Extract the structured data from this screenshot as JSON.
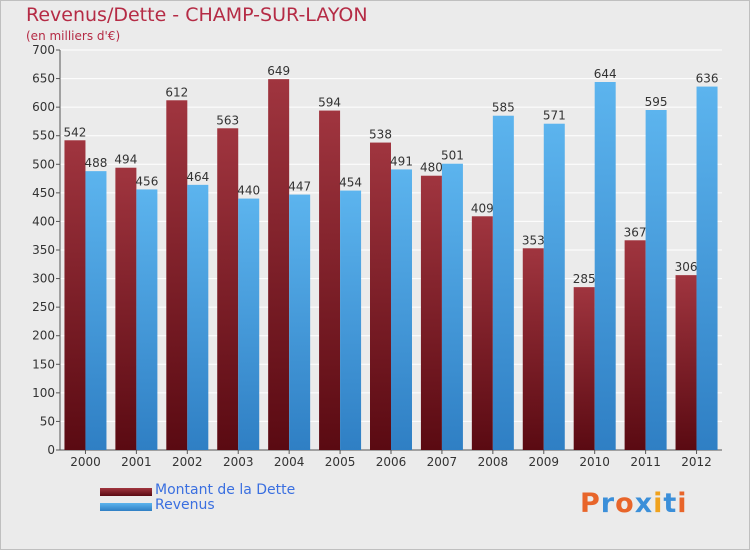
{
  "title": "Revenus/Dette - CHAMP-SUR-LAYON",
  "subtitle": "(en milliers d'€)",
  "logo": {
    "text": "Proxiti",
    "colors": [
      "#e8652a",
      "#3b8fd9",
      "#e8652a",
      "#3b8fd9",
      "#f0a21d",
      "#3b8fd9",
      "#e8652a"
    ]
  },
  "colors": {
    "debt_dark": "#5a0a12",
    "debt_light": "#a0353f",
    "rev_dark": "#2f7fc4",
    "rev_light": "#5cb4ee",
    "background": "#ebebeb",
    "grid": "#ffffff",
    "title": "#b52b45",
    "legend_text": "#3a6fe0"
  },
  "chart_data": {
    "type": "bar",
    "categories": [
      "2000",
      "2001",
      "2002",
      "2003",
      "2004",
      "2005",
      "2006",
      "2007",
      "2008",
      "2009",
      "2010",
      "2011",
      "2012"
    ],
    "series": [
      {
        "name": "Montant de la Dette",
        "values": [
          542,
          494,
          612,
          563,
          649,
          594,
          538,
          480,
          409,
          353,
          285,
          367,
          306
        ]
      },
      {
        "name": "Revenus",
        "values": [
          488,
          456,
          464,
          440,
          447,
          454,
          491,
          501,
          585,
          571,
          644,
          595,
          636
        ]
      }
    ],
    "title": "Revenus/Dette - CHAMP-SUR-LAYON",
    "subtitle": "(en milliers d'€)",
    "ylim": [
      0,
      700
    ],
    "yticks": [
      0,
      50,
      100,
      150,
      200,
      250,
      300,
      350,
      400,
      450,
      500,
      550,
      600,
      650,
      700
    ],
    "grid": true,
    "legend_position": "bottom-left",
    "data_labels": true
  }
}
